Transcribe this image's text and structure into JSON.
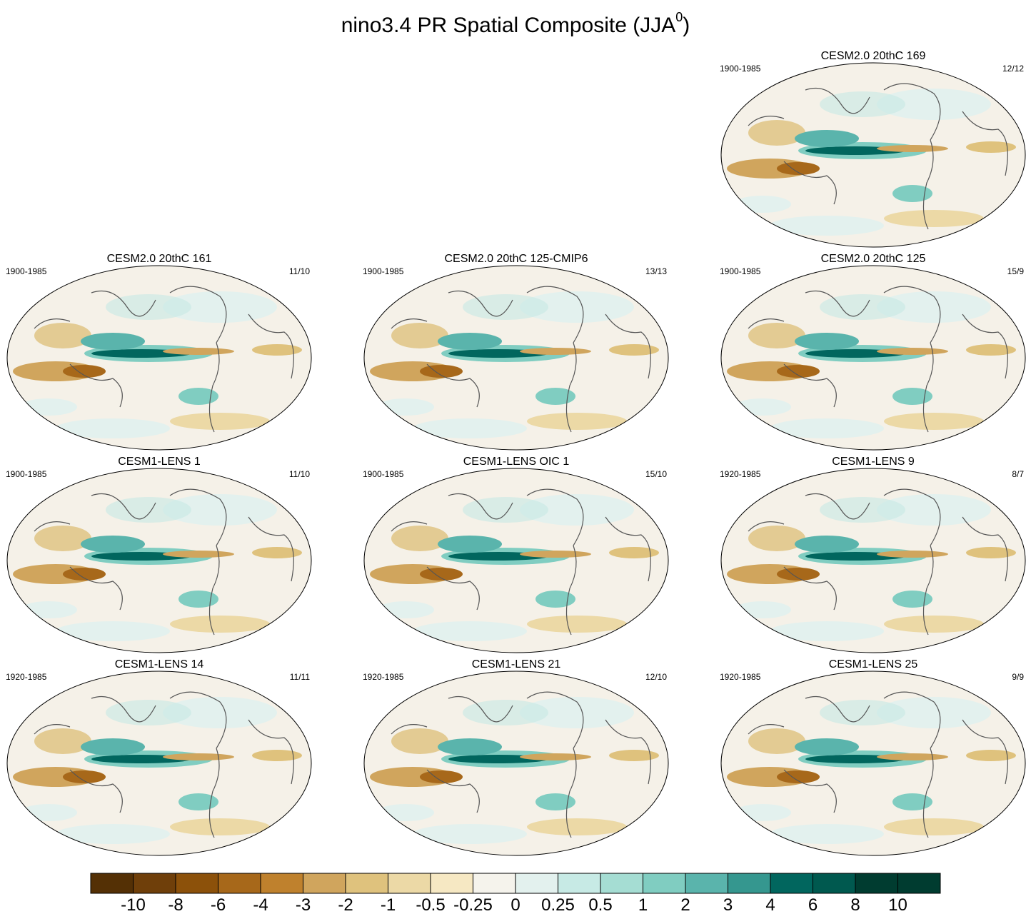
{
  "title": "nino3.4 PR Spatial Composite (JJA",
  "title_sup": "0",
  "title_close": ")",
  "panels": [
    {
      "title": "CESM2.0 20thC 169",
      "period": "1900-1985",
      "count": "12/12"
    },
    {
      "title": "CESM2.0 20thC 161",
      "period": "1900-1985",
      "count": "11/10"
    },
    {
      "title": "CESM2.0 20thC 125-CMIP6",
      "period": "1900-1985",
      "count": "13/13"
    },
    {
      "title": "CESM2.0 20thC 125",
      "period": "1900-1985",
      "count": "15/9"
    },
    {
      "title": "CESM1-LENS 1",
      "period": "1900-1985",
      "count": "11/10"
    },
    {
      "title": "CESM1-LENS OIC 1",
      "period": "1900-1985",
      "count": "15/10"
    },
    {
      "title": "CESM1-LENS 9",
      "period": "1920-1985",
      "count": "8/7"
    },
    {
      "title": "CESM1-LENS 14",
      "period": "1920-1985",
      "count": "11/11"
    },
    {
      "title": "CESM1-LENS 21",
      "period": "1920-1985",
      "count": "12/10"
    },
    {
      "title": "CESM1-LENS 25",
      "period": "1920-1985",
      "count": "9/9"
    }
  ],
  "chart_data": {
    "type": "heatmap",
    "title": "nino3.4 PR Spatial Composite (JJA0)",
    "projection": "global map",
    "colorbar": {
      "levels": [
        "-10",
        "-8",
        "-6",
        "-4",
        "-3",
        "-2",
        "-1",
        "-0.5",
        "-0.25",
        "0",
        "0.25",
        "0.5",
        "1",
        "2",
        "3",
        "4",
        "6",
        "8",
        "10"
      ],
      "colors": [
        "#543005",
        "#6f3f0a",
        "#8c510a",
        "#a7681a",
        "#bf812d",
        "#d0a55d",
        "#dfc27d",
        "#ecd9a6",
        "#f6e8c3",
        "#f5f3ec",
        "#e3f1ee",
        "#c7eae5",
        "#a5ddd3",
        "#80cdc1",
        "#5ab4ac",
        "#35978f",
        "#01665e",
        "#00594f",
        "#003c30"
      ]
    }
  }
}
